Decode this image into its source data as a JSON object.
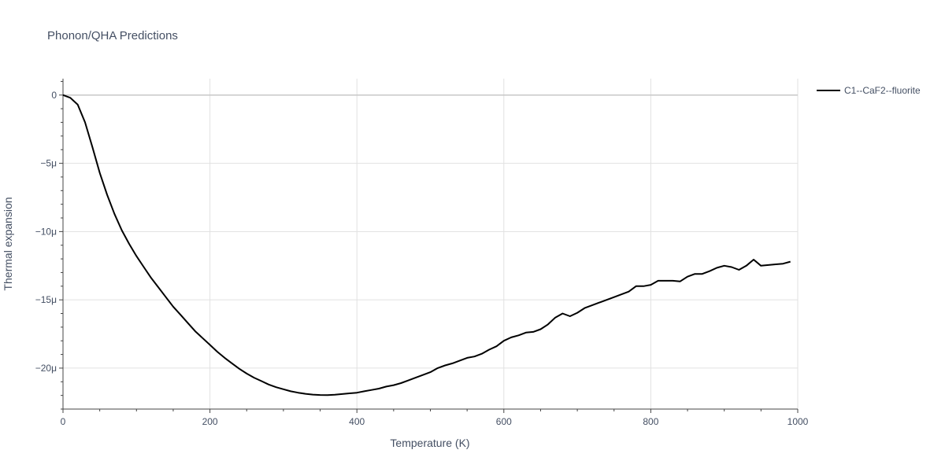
{
  "chart_data": {
    "type": "line",
    "title": "Phonon/QHA Predictions",
    "xlabel": "Temperature (K)",
    "ylabel": "Thermal expansion",
    "xlim": [
      0,
      1000
    ],
    "ylim": [
      -23,
      1.2
    ],
    "x_ticks": [
      0,
      200,
      400,
      600,
      800,
      1000
    ],
    "x_tick_labels": [
      "0",
      "200",
      "400",
      "600",
      "800",
      "1000"
    ],
    "y_ticks": [
      0,
      -5,
      -10,
      -15,
      -20
    ],
    "y_tick_labels": [
      "0",
      "−5μ",
      "−10μ",
      "−15μ",
      "−20μ"
    ],
    "grid": true,
    "legend_position": "top-right",
    "series": [
      {
        "name": "C1--CaF2--fluorite",
        "color": "#000000",
        "x": [
          0,
          10,
          20,
          30,
          40,
          50,
          60,
          70,
          80,
          90,
          100,
          110,
          120,
          130,
          140,
          150,
          160,
          170,
          180,
          190,
          200,
          210,
          220,
          230,
          240,
          250,
          260,
          270,
          280,
          290,
          300,
          310,
          320,
          330,
          340,
          350,
          360,
          370,
          380,
          390,
          400,
          410,
          420,
          430,
          440,
          450,
          460,
          470,
          480,
          490,
          500,
          510,
          520,
          530,
          540,
          550,
          560,
          570,
          580,
          590,
          600,
          610,
          620,
          630,
          640,
          650,
          660,
          670,
          680,
          690,
          700,
          710,
          720,
          730,
          740,
          750,
          760,
          770,
          780,
          790,
          800,
          810,
          820,
          830,
          840,
          850,
          860,
          870,
          880,
          890,
          900,
          910,
          920,
          930,
          940,
          950,
          960,
          970,
          980,
          990
        ],
        "y": [
          0,
          -0.2,
          -0.7,
          -2.0,
          -3.8,
          -5.7,
          -7.3,
          -8.7,
          -9.9,
          -10.9,
          -11.8,
          -12.6,
          -13.4,
          -14.1,
          -14.8,
          -15.5,
          -16.1,
          -16.7,
          -17.3,
          -17.8,
          -18.3,
          -18.8,
          -19.25,
          -19.65,
          -20.05,
          -20.4,
          -20.7,
          -20.95,
          -21.2,
          -21.4,
          -21.55,
          -21.7,
          -21.8,
          -21.88,
          -21.94,
          -21.97,
          -21.98,
          -21.95,
          -21.9,
          -21.85,
          -21.8,
          -21.7,
          -21.6,
          -21.5,
          -21.35,
          -21.25,
          -21.1,
          -20.9,
          -20.7,
          -20.5,
          -20.3,
          -20.0,
          -19.8,
          -19.65,
          -19.45,
          -19.25,
          -19.15,
          -18.95,
          -18.65,
          -18.4,
          -18.0,
          -17.75,
          -17.6,
          -17.4,
          -17.35,
          -17.15,
          -16.8,
          -16.3,
          -16.0,
          -16.2,
          -15.95,
          -15.6,
          -15.4,
          -15.2,
          -15.0,
          -14.8,
          -14.6,
          -14.4,
          -14.0,
          -14.0,
          -13.9,
          -13.6,
          -13.6,
          -13.6,
          -13.65,
          -13.3,
          -13.1,
          -13.1,
          -12.9,
          -12.65,
          -12.5,
          -12.6,
          -12.8,
          -12.5,
          -12.05,
          -12.5,
          -12.45,
          -12.4,
          -12.35,
          -12.2
        ]
      }
    ]
  }
}
